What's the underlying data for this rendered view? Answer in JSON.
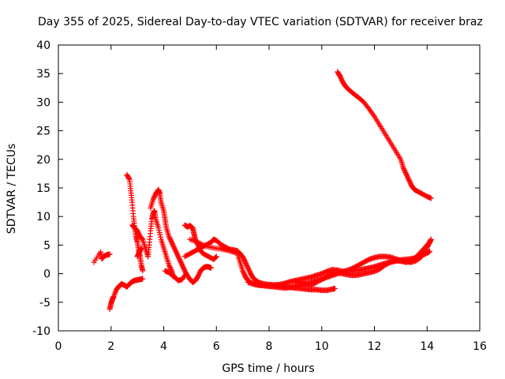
{
  "chart_data": {
    "type": "scatter",
    "title": "Day 355 of 2025, Sidereal Day-to-day VTEC variation (SDTVAR) for receiver braz",
    "xlabel": "GPS time / hours",
    "ylabel": "SDTVAR / TECUs",
    "xlim": [
      0,
      16
    ],
    "ylim": [
      -10,
      40
    ],
    "xticks": [
      0,
      2,
      4,
      6,
      8,
      10,
      12,
      14,
      16
    ],
    "yticks": [
      -10,
      -5,
      0,
      5,
      10,
      15,
      20,
      25,
      30,
      35,
      40
    ],
    "marker": "+",
    "marker_color": "#ff0000",
    "grid": false,
    "series": [
      {
        "name": "s1",
        "points": [
          [
            1.35,
            2.0
          ],
          [
            1.6,
            3.8
          ],
          [
            1.65,
            2.6
          ],
          [
            1.75,
            3.1
          ],
          [
            1.85,
            3.3
          ],
          [
            1.95,
            3.4
          ]
        ]
      },
      {
        "name": "s2",
        "points": [
          [
            1.95,
            -6.2
          ],
          [
            2.0,
            -5.2
          ],
          [
            2.05,
            -4.5
          ],
          [
            2.1,
            -4.0
          ],
          [
            2.2,
            -2.8
          ],
          [
            2.3,
            -2.2
          ],
          [
            2.4,
            -1.8
          ],
          [
            2.5,
            -2.0
          ],
          [
            2.6,
            -2.3
          ],
          [
            2.7,
            -1.8
          ],
          [
            2.8,
            -1.4
          ],
          [
            2.9,
            -1.2
          ],
          [
            3.0,
            -1.1
          ],
          [
            3.1,
            -1.0
          ],
          [
            3.2,
            -0.9
          ]
        ]
      },
      {
        "name": "s3",
        "points": [
          [
            2.6,
            17.3
          ],
          [
            2.7,
            16.5
          ],
          [
            2.75,
            14.5
          ],
          [
            2.8,
            12.5
          ],
          [
            2.85,
            10.0
          ],
          [
            2.9,
            8.0
          ],
          [
            2.95,
            6.5
          ],
          [
            3.0,
            5.5
          ],
          [
            3.05,
            4.0
          ],
          [
            3.1,
            3.0
          ],
          [
            3.15,
            1.5
          ],
          [
            3.2,
            0.5
          ]
        ]
      },
      {
        "name": "s4",
        "points": [
          [
            2.8,
            8.5
          ],
          [
            2.9,
            8.0
          ],
          [
            3.0,
            7.5
          ],
          [
            3.1,
            6.5
          ],
          [
            3.2,
            6.0
          ],
          [
            3.3,
            4.5
          ],
          [
            3.4,
            3.0
          ]
        ]
      },
      {
        "name": "s5",
        "points": [
          [
            3.0,
            3.0
          ],
          [
            3.05,
            3.5
          ],
          [
            3.1,
            4.0
          ],
          [
            3.15,
            4.5
          ]
        ]
      },
      {
        "name": "s6",
        "points": [
          [
            3.4,
            3.0
          ],
          [
            3.45,
            5.0
          ],
          [
            3.5,
            7.5
          ],
          [
            3.55,
            9.5
          ],
          [
            3.6,
            10.5
          ],
          [
            3.65,
            11.0
          ],
          [
            3.7,
            9.5
          ],
          [
            3.8,
            8.0
          ],
          [
            3.9,
            6.0
          ],
          [
            4.0,
            4.5
          ],
          [
            4.1,
            3.0
          ],
          [
            4.2,
            1.5
          ],
          [
            4.3,
            0.5
          ],
          [
            4.35,
            -0.5
          ]
        ]
      },
      {
        "name": "s7",
        "points": [
          [
            3.5,
            11.5
          ],
          [
            3.6,
            13.0
          ],
          [
            3.7,
            14.0
          ],
          [
            3.8,
            14.7
          ],
          [
            3.85,
            14.0
          ],
          [
            3.9,
            12.5
          ],
          [
            4.0,
            11.0
          ],
          [
            4.05,
            9.5
          ],
          [
            4.1,
            8.0
          ],
          [
            4.2,
            6.5
          ],
          [
            4.3,
            5.5
          ],
          [
            4.4,
            4.5
          ],
          [
            4.5,
            3.5
          ],
          [
            4.6,
            2.5
          ],
          [
            4.7,
            1.5
          ],
          [
            4.8,
            0.5
          ],
          [
            4.9,
            -0.5
          ]
        ]
      },
      {
        "name": "s8",
        "points": [
          [
            4.05,
            0.5
          ],
          [
            4.2,
            0.2
          ],
          [
            4.4,
            -0.5
          ],
          [
            4.55,
            -1.2
          ],
          [
            4.7,
            -1.0
          ],
          [
            4.85,
            0.0
          ],
          [
            5.0,
            -1.0
          ],
          [
            5.1,
            -1.5
          ],
          [
            5.2,
            -1.2
          ],
          [
            5.3,
            -0.5
          ],
          [
            5.4,
            0.5
          ],
          [
            5.5,
            1.0
          ],
          [
            5.6,
            1.2
          ],
          [
            5.7,
            1.2
          ],
          [
            5.8,
            1.0
          ]
        ]
      },
      {
        "name": "s9",
        "points": [
          [
            4.8,
            8.5
          ],
          [
            4.9,
            8.2
          ],
          [
            5.0,
            8.4
          ],
          [
            5.1,
            8.0
          ],
          [
            5.15,
            7.0
          ],
          [
            5.2,
            6.0
          ],
          [
            5.3,
            5.0
          ],
          [
            5.4,
            4.0
          ],
          [
            5.5,
            3.5
          ],
          [
            5.7,
            3.0
          ],
          [
            5.9,
            2.5
          ],
          [
            6.0,
            3.0
          ]
        ]
      },
      {
        "name": "s10",
        "points": [
          [
            4.8,
            3.0
          ],
          [
            5.0,
            3.5
          ],
          [
            5.2,
            4.0
          ],
          [
            5.4,
            4.5
          ],
          [
            5.6,
            5.0
          ],
          [
            5.8,
            5.5
          ],
          [
            5.9,
            6.0
          ],
          [
            6.0,
            5.8
          ],
          [
            6.2,
            5.0
          ],
          [
            6.4,
            4.5
          ],
          [
            6.6,
            4.0
          ],
          [
            6.8,
            3.8
          ],
          [
            6.9,
            3.5
          ]
        ]
      },
      {
        "name": "s11",
        "points": [
          [
            5.0,
            6.0
          ],
          [
            5.3,
            5.5
          ],
          [
            5.6,
            4.8
          ],
          [
            5.9,
            4.5
          ],
          [
            6.2,
            4.3
          ],
          [
            6.5,
            4.0
          ],
          [
            6.8,
            3.5
          ],
          [
            6.9,
            2.0
          ],
          [
            7.0,
            0.5
          ],
          [
            7.1,
            -0.5
          ],
          [
            7.2,
            -1.2
          ],
          [
            7.4,
            -1.8
          ],
          [
            7.6,
            -2.0
          ],
          [
            7.8,
            -2.1
          ],
          [
            8.0,
            -2.2
          ],
          [
            8.2,
            -2.3
          ],
          [
            8.4,
            -2.4
          ],
          [
            8.6,
            -2.5
          ],
          [
            8.8,
            -2.4
          ],
          [
            9.0,
            -2.2
          ],
          [
            9.2,
            -2.0
          ],
          [
            9.4,
            -1.8
          ],
          [
            9.6,
            -1.5
          ],
          [
            9.8,
            -1.2
          ],
          [
            10.0,
            -1.0
          ],
          [
            10.2,
            -0.6
          ],
          [
            10.4,
            -0.3
          ],
          [
            10.6,
            0.0
          ],
          [
            10.8,
            0.2
          ],
          [
            11.0,
            0.4
          ],
          [
            11.2,
            0.5
          ],
          [
            11.4,
            0.6
          ],
          [
            11.6,
            0.8
          ],
          [
            11.8,
            1.0
          ],
          [
            12.0,
            1.2
          ],
          [
            12.2,
            1.5
          ],
          [
            12.4,
            1.8
          ],
          [
            12.6,
            2.0
          ],
          [
            12.8,
            2.2
          ],
          [
            13.0,
            2.4
          ],
          [
            13.2,
            2.5
          ],
          [
            13.4,
            2.6
          ],
          [
            13.6,
            2.8
          ],
          [
            13.8,
            3.2
          ],
          [
            14.0,
            3.6
          ],
          [
            14.1,
            3.9
          ]
        ]
      },
      {
        "name": "s12",
        "points": [
          [
            6.2,
            4.5
          ],
          [
            6.4,
            4.3
          ],
          [
            6.6,
            4.2
          ],
          [
            6.8,
            4.0
          ],
          [
            7.0,
            3.0
          ],
          [
            7.1,
            2.0
          ],
          [
            7.2,
            1.0
          ],
          [
            7.3,
            0.0
          ],
          [
            7.4,
            -0.8
          ],
          [
            7.6,
            -1.5
          ],
          [
            7.8,
            -1.8
          ],
          [
            8.0,
            -1.9
          ],
          [
            8.2,
            -2.0
          ],
          [
            8.4,
            -2.1
          ],
          [
            8.6,
            -2.3
          ],
          [
            8.8,
            -2.4
          ],
          [
            9.0,
            -2.5
          ],
          [
            9.2,
            -2.6
          ],
          [
            9.4,
            -2.7
          ],
          [
            9.6,
            -2.8
          ],
          [
            9.8,
            -2.8
          ],
          [
            10.0,
            -2.9
          ],
          [
            10.2,
            -2.9
          ],
          [
            10.4,
            -2.7
          ],
          [
            10.5,
            -2.6
          ]
        ]
      },
      {
        "name": "s13",
        "points": [
          [
            7.2,
            -1.5
          ],
          [
            7.4,
            -1.8
          ],
          [
            7.6,
            -2.0
          ],
          [
            7.8,
            -2.0
          ],
          [
            8.0,
            -2.1
          ],
          [
            8.2,
            -2.0
          ],
          [
            8.4,
            -1.9
          ],
          [
            8.6,
            -1.7
          ],
          [
            8.8,
            -1.4
          ],
          [
            9.0,
            -1.2
          ],
          [
            9.2,
            -1.0
          ],
          [
            9.4,
            -0.8
          ],
          [
            9.6,
            -0.6
          ],
          [
            9.8,
            -0.3
          ],
          [
            10.0,
            0.0
          ],
          [
            10.2,
            0.4
          ],
          [
            10.4,
            0.7
          ],
          [
            10.6,
            0.6
          ],
          [
            10.8,
            0.4
          ],
          [
            11.0,
            0.6
          ],
          [
            11.2,
            1.0
          ],
          [
            11.4,
            1.5
          ],
          [
            11.6,
            2.0
          ],
          [
            11.8,
            2.5
          ],
          [
            12.0,
            2.8
          ],
          [
            12.2,
            3.0
          ],
          [
            12.4,
            3.0
          ],
          [
            12.6,
            2.9
          ],
          [
            12.8,
            2.6
          ],
          [
            13.0,
            2.3
          ],
          [
            13.2,
            2.1
          ],
          [
            13.4,
            2.0
          ],
          [
            13.6,
            2.3
          ],
          [
            13.8,
            3.0
          ],
          [
            14.0,
            4.5
          ],
          [
            14.1,
            5.5
          ],
          [
            14.15,
            6.0
          ]
        ]
      },
      {
        "name": "s14",
        "points": [
          [
            9.0,
            -1.3
          ],
          [
            9.2,
            -1.6
          ],
          [
            9.4,
            -1.8
          ],
          [
            9.6,
            -2.0
          ],
          [
            9.8,
            -1.5
          ],
          [
            10.0,
            -1.0
          ],
          [
            10.2,
            -0.5
          ],
          [
            10.4,
            0.2
          ],
          [
            10.6,
            0.3
          ],
          [
            10.8,
            0.0
          ],
          [
            11.0,
            -0.2
          ],
          [
            11.2,
            -0.3
          ],
          [
            11.4,
            -0.2
          ],
          [
            11.6,
            0.0
          ],
          [
            11.8,
            0.2
          ],
          [
            12.0,
            0.4
          ],
          [
            12.2,
            0.8
          ],
          [
            12.4,
            1.5
          ],
          [
            12.6,
            2.0
          ],
          [
            12.8,
            2.3
          ],
          [
            13.0,
            2.2
          ],
          [
            13.2,
            2.0
          ],
          [
            13.4,
            2.2
          ],
          [
            13.6,
            3.0
          ],
          [
            13.8,
            4.0
          ],
          [
            14.0,
            5.0
          ],
          [
            14.1,
            5.5
          ]
        ]
      },
      {
        "name": "s15",
        "points": [
          [
            10.6,
            35.3
          ],
          [
            10.7,
            34.5
          ],
          [
            10.8,
            33.5
          ],
          [
            10.9,
            32.8
          ],
          [
            11.0,
            32.3
          ],
          [
            11.2,
            31.5
          ],
          [
            11.4,
            30.8
          ],
          [
            11.6,
            30.0
          ],
          [
            11.8,
            28.8
          ],
          [
            12.0,
            27.5
          ],
          [
            12.2,
            26.0
          ],
          [
            12.4,
            24.5
          ],
          [
            12.6,
            23.0
          ],
          [
            12.8,
            21.5
          ],
          [
            13.0,
            20.0
          ],
          [
            13.1,
            18.5
          ],
          [
            13.2,
            17.5
          ],
          [
            13.3,
            16.5
          ],
          [
            13.4,
            15.5
          ],
          [
            13.5,
            14.8
          ],
          [
            13.6,
            14.5
          ],
          [
            13.8,
            14.0
          ],
          [
            14.0,
            13.5
          ],
          [
            14.15,
            13.2
          ]
        ]
      }
    ]
  }
}
